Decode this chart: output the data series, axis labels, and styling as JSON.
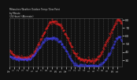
{
  "title_line1": "Milwaukee Weather Outdoor Temp / Dew Point",
  "title_line2": "by Minute",
  "title_line3": "(24 Hours) (Alternate)",
  "background_color": "#111111",
  "plot_bg_color": "#111111",
  "grid_color": "#555555",
  "temp_color": "#ff2222",
  "dew_color": "#4444ff",
  "ylim": [
    22,
    82
  ],
  "xlim": [
    0,
    1439
  ],
  "ytick_values": [
    30,
    40,
    50,
    60,
    70,
    80
  ],
  "ytick_labels": [
    "30",
    "40",
    "50",
    "60",
    "70",
    "80"
  ],
  "temp_data": [
    42,
    41,
    41,
    40,
    40,
    39,
    39,
    38,
    38,
    37,
    37,
    37,
    36,
    36,
    36,
    35,
    35,
    35,
    35,
    35,
    34,
    34,
    34,
    34,
    34,
    34,
    34,
    33,
    33,
    33,
    33,
    33,
    33,
    33,
    33,
    33,
    33,
    33,
    33,
    33,
    33,
    33,
    33,
    33,
    33,
    33,
    33,
    33,
    33,
    33,
    33,
    33,
    33,
    34,
    34,
    34,
    35,
    35,
    35,
    36,
    36,
    37,
    37,
    38,
    38,
    39,
    40,
    40,
    41,
    42,
    43,
    44,
    45,
    46,
    47,
    48,
    49,
    50,
    51,
    52,
    53,
    54,
    55,
    56,
    57,
    58,
    59,
    60,
    61,
    62,
    62,
    63,
    64,
    65,
    66,
    67,
    68,
    69,
    70,
    71,
    72,
    73,
    74,
    74,
    75,
    76,
    76,
    77,
    77,
    77,
    78,
    78,
    78,
    78,
    78,
    78,
    78,
    78,
    77,
    77,
    77,
    77,
    77,
    77,
    77,
    76,
    76,
    76,
    76,
    76,
    76,
    75,
    75,
    74,
    74,
    73,
    73,
    72,
    72,
    71,
    70,
    69,
    68,
    67,
    67,
    66,
    65,
    64,
    63,
    62,
    61,
    60,
    59,
    58,
    57,
    56,
    55,
    54,
    53,
    52,
    51,
    50,
    49,
    48,
    47,
    46,
    45,
    44,
    43,
    42,
    41,
    40,
    39,
    38,
    38,
    37,
    36,
    36,
    35,
    35,
    34,
    34,
    33,
    33,
    33,
    32,
    32,
    32,
    32,
    31,
    31,
    31,
    31,
    31,
    30,
    30,
    30,
    30,
    30,
    30,
    30,
    30,
    29,
    29,
    29,
    29,
    29,
    29,
    29,
    29,
    29,
    29,
    29,
    29,
    29,
    29,
    29,
    29,
    29,
    29,
    29,
    29,
    29,
    29,
    29,
    30,
    30,
    30,
    30,
    30,
    31,
    31,
    31,
    32,
    32,
    33,
    33,
    34,
    34,
    35,
    36,
    36,
    37,
    38,
    39,
    40,
    41,
    42,
    43,
    44,
    45,
    46,
    47,
    48,
    49,
    50,
    51,
    52,
    53,
    54,
    55,
    56,
    57,
    58,
    59,
    60,
    61,
    62,
    63,
    64,
    65,
    66,
    67,
    68,
    69,
    70,
    71,
    72,
    73,
    74,
    74,
    75,
    76,
    77,
    78,
    79,
    79,
    80,
    81,
    81,
    81,
    80,
    80,
    79,
    78,
    77,
    77,
    76,
    75,
    74
  ],
  "dew_data": [
    35,
    35,
    34,
    34,
    34,
    33,
    33,
    33,
    33,
    32,
    32,
    32,
    32,
    32,
    32,
    32,
    31,
    31,
    31,
    31,
    31,
    31,
    31,
    31,
    31,
    31,
    31,
    31,
    31,
    31,
    31,
    31,
    31,
    31,
    31,
    31,
    31,
    31,
    31,
    31,
    31,
    31,
    31,
    31,
    31,
    31,
    31,
    31,
    31,
    31,
    31,
    31,
    31,
    31,
    31,
    32,
    32,
    32,
    33,
    33,
    34,
    34,
    35,
    35,
    36,
    36,
    37,
    37,
    38,
    39,
    39,
    40,
    41,
    41,
    42,
    43,
    43,
    44,
    45,
    46,
    46,
    47,
    48,
    48,
    49,
    50,
    50,
    51,
    52,
    52,
    53,
    54,
    54,
    55,
    55,
    55,
    56,
    56,
    57,
    57,
    57,
    57,
    57,
    57,
    57,
    57,
    57,
    57,
    57,
    57,
    57,
    57,
    57,
    57,
    57,
    57,
    57,
    57,
    57,
    56,
    56,
    56,
    56,
    56,
    56,
    56,
    55,
    55,
    55,
    55,
    54,
    54,
    54,
    53,
    53,
    52,
    52,
    51,
    51,
    50,
    50,
    49,
    49,
    48,
    47,
    46,
    46,
    45,
    44,
    43,
    42,
    41,
    41,
    40,
    39,
    38,
    37,
    36,
    35,
    35,
    34,
    33,
    32,
    31,
    30,
    30,
    29,
    28,
    28,
    27,
    26,
    26,
    25,
    25,
    24,
    24,
    23,
    23,
    23,
    23,
    23,
    23,
    23,
    23,
    23,
    23,
    23,
    23,
    23,
    23,
    23,
    23,
    23,
    23,
    23,
    23,
    23,
    23,
    23,
    23,
    23,
    23,
    23,
    23,
    23,
    23,
    23,
    23,
    23,
    23,
    23,
    23,
    23,
    23,
    23,
    23,
    23,
    23,
    23,
    23,
    23,
    23,
    23,
    23,
    23,
    23,
    23,
    23,
    23,
    23,
    23,
    23,
    23,
    23,
    23,
    23,
    23,
    23,
    24,
    24,
    24,
    24,
    24,
    25,
    25,
    25,
    26,
    26,
    27,
    27,
    28,
    28,
    29,
    29,
    30,
    30,
    31,
    32,
    32,
    33,
    34,
    35,
    35,
    36,
    37,
    38,
    39,
    40,
    41,
    42,
    43,
    44,
    45,
    46,
    47,
    48,
    49,
    50,
    51,
    52,
    53,
    53,
    54,
    55,
    56,
    57,
    57,
    58,
    59,
    59,
    59,
    59,
    59,
    58,
    58,
    57,
    56,
    55,
    54,
    53
  ],
  "noise_seed": 42
}
